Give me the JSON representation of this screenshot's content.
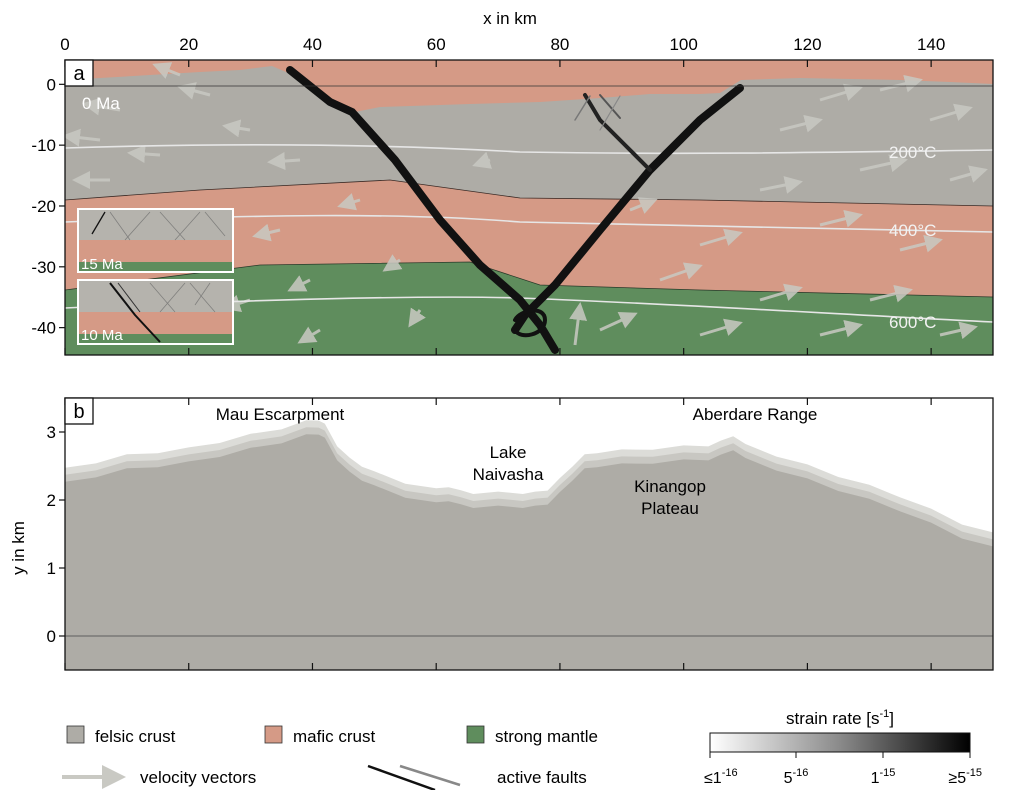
{
  "x_axis": {
    "title": "x in km",
    "ticks": [
      "0",
      "20",
      "40",
      "60",
      "80",
      "100",
      "120",
      "140"
    ],
    "min": 0,
    "max": 150
  },
  "panel_a": {
    "label": "a",
    "time_label": "0 Ma",
    "y_ticks": [
      "0",
      "-10",
      "-20",
      "-30",
      "-40"
    ],
    "y_min": -44.5,
    "y_max": 4,
    "isotherms": [
      "200°C",
      "400°C",
      "600°C"
    ],
    "insets": [
      "15 Ma",
      "10 Ma"
    ]
  },
  "panel_b": {
    "label": "b",
    "y_title": "y in km",
    "y_ticks": [
      "0",
      "1",
      "2",
      "3"
    ],
    "y_min": -0.5,
    "y_max": 3.5,
    "annotations": {
      "mau": "Mau Escarpment",
      "aberdare": "Aberdare Range",
      "lake_1": "Lake",
      "lake_2": "Naivasha",
      "kinangop_1": "Kinangop",
      "kinangop_2": "Plateau"
    }
  },
  "legend": {
    "felsic": "felsic crust",
    "mafic": "mafic crust",
    "mantle": "strong mantle",
    "velocity": "velocity vectors",
    "faults": "active faults",
    "colorbar_title": "strain rate [s",
    "colorbar_title_exp": "-1",
    "colorbar_title_end": "]",
    "colorbar_ticks": [
      {
        "base": "≤1",
        "exp": "-16"
      },
      {
        "base": "5",
        "exp": "-16"
      },
      {
        "base": "1",
        "exp": "-15"
      },
      {
        "base": "≥5",
        "exp": "-15"
      }
    ]
  },
  "colors": {
    "felsic": "#aeaca6",
    "mafic": "#d59a86",
    "mantle": "#5f8d5d",
    "fault": "#111111",
    "isotherm": "#e6e6e6",
    "vector": "#c6c6c0"
  },
  "panel_b_topography": {
    "x_km": [
      0,
      5,
      10,
      15,
      20,
      25,
      30,
      35,
      39,
      41,
      42,
      44,
      46,
      48,
      50,
      55,
      60,
      62,
      64,
      66,
      70,
      74,
      76,
      78,
      80,
      82,
      84,
      86,
      90,
      95,
      100,
      104,
      106,
      108,
      110,
      115,
      120,
      125,
      130,
      135,
      140,
      145,
      150
    ],
    "y_km": [
      2.25,
      2.35,
      2.45,
      2.5,
      2.55,
      2.65,
      2.75,
      2.85,
      2.95,
      2.98,
      2.9,
      2.6,
      2.4,
      2.3,
      2.2,
      2.05,
      1.95,
      2.0,
      1.92,
      1.9,
      1.9,
      1.9,
      1.9,
      1.95,
      2.1,
      2.3,
      2.45,
      2.5,
      2.52,
      2.55,
      2.58,
      2.6,
      2.65,
      2.75,
      2.6,
      2.45,
      2.3,
      2.15,
      2.0,
      1.85,
      1.65,
      1.45,
      1.3
    ]
  }
}
